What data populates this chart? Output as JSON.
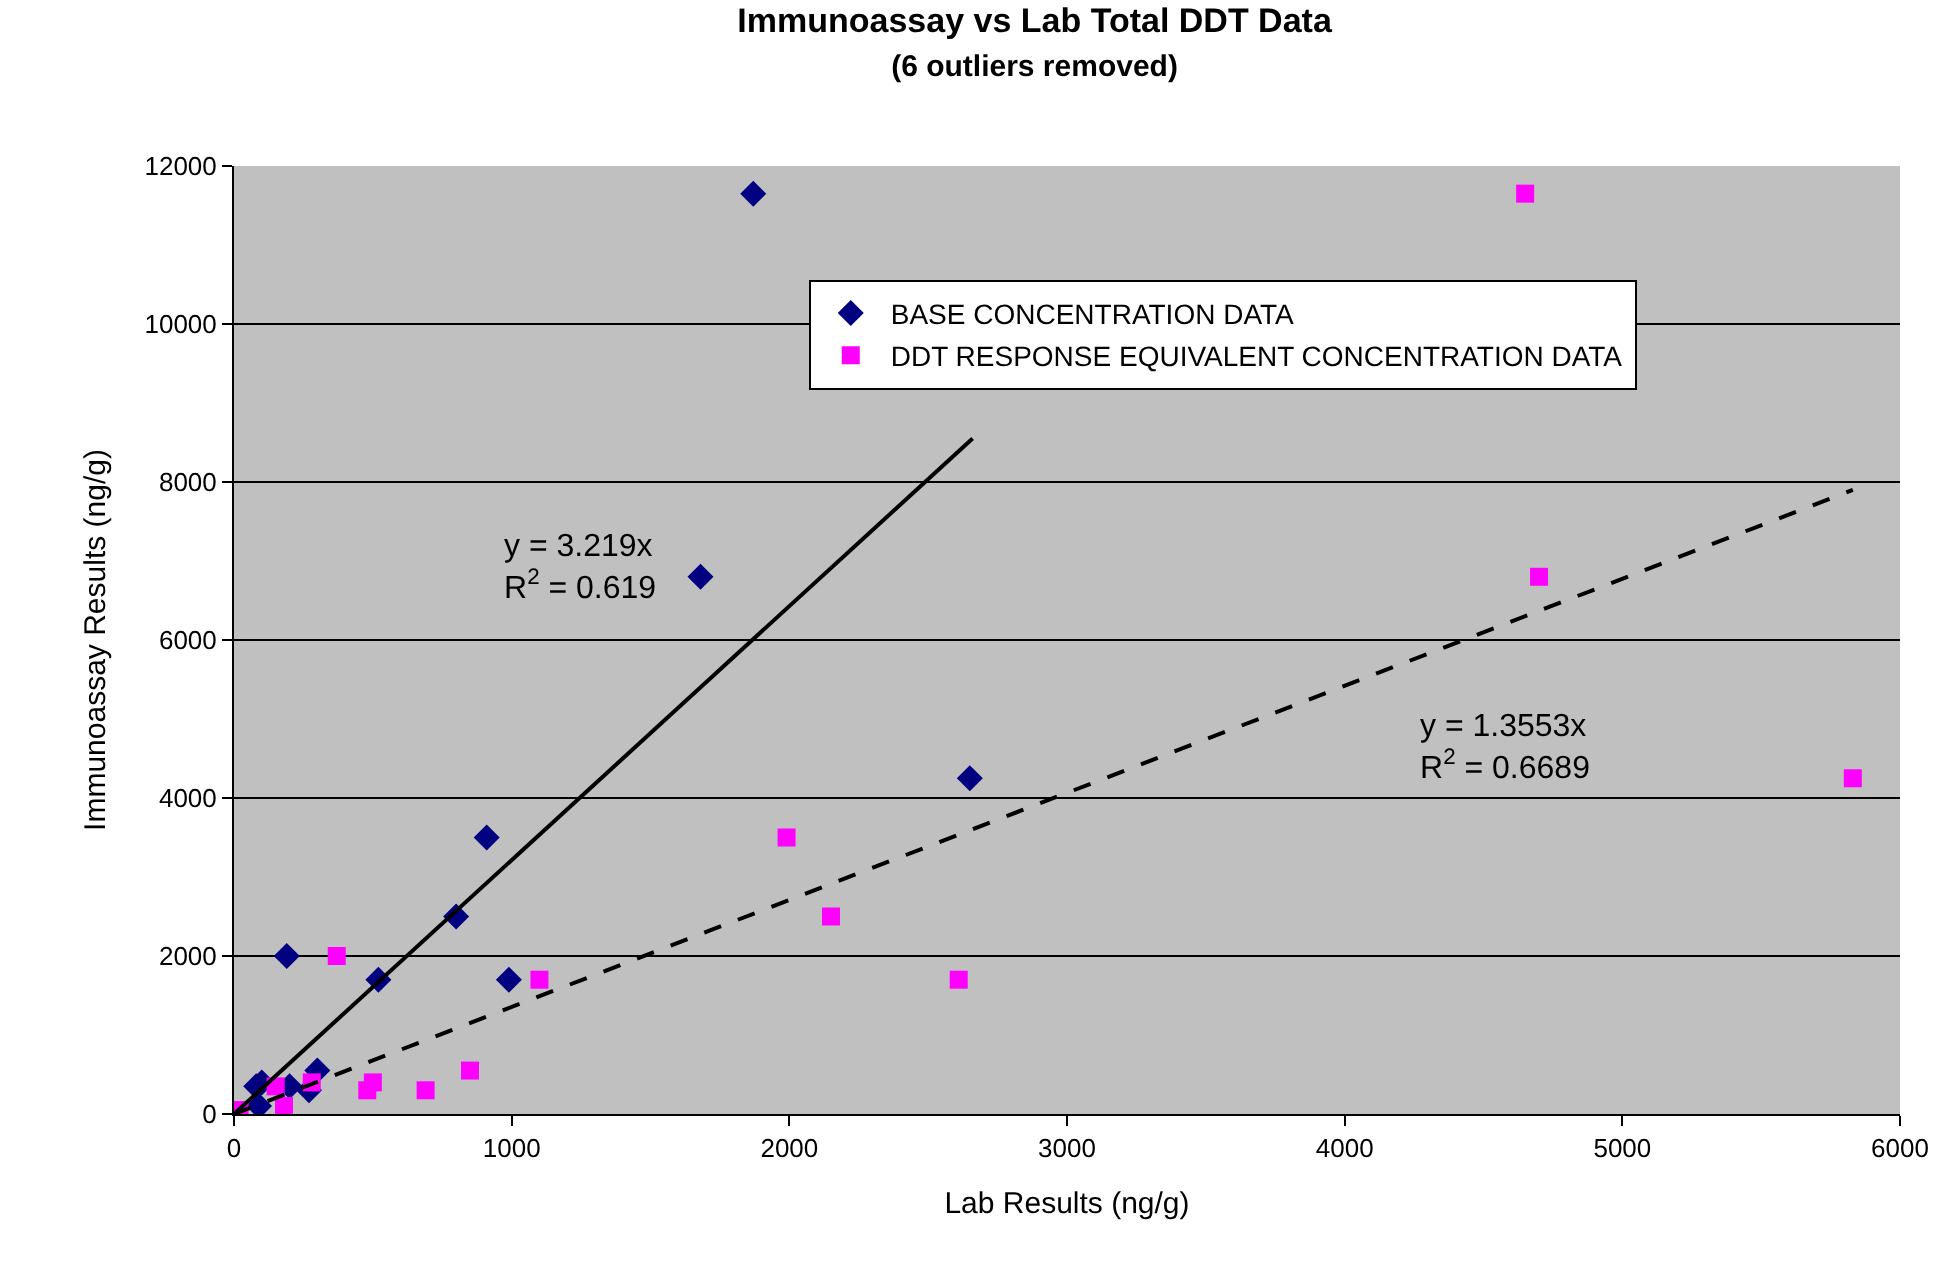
{
  "chart_data": {
    "type": "scatter",
    "title": "Immunoassay vs Lab Total DDT Data",
    "subtitle": "(6 outliers removed)",
    "xlabel": "Lab Results (ng/g)",
    "ylabel": "Immunoassay Results (ng/g)",
    "xlim": [
      0,
      6000
    ],
    "xticks": [
      0,
      1000,
      2000,
      3000,
      4000,
      5000,
      6000
    ],
    "ylim": [
      0,
      12000
    ],
    "yticks": [
      0,
      2000,
      4000,
      6000,
      8000,
      10000,
      12000
    ],
    "grid": "y",
    "legend": "top right",
    "series": [
      {
        "name": "BASE CONCENTRATION DATA",
        "color": "#000080",
        "marker": "diamond",
        "x": [
          1870,
          1680,
          2650,
          910,
          800,
          190,
          520,
          990,
          300,
          270,
          200,
          100,
          80,
          90
        ],
        "values": [
          11650,
          6800,
          4250,
          3500,
          2500,
          2000,
          1700,
          1700,
          550,
          300,
          350,
          400,
          350,
          100
        ]
      },
      {
        "name": "DDT RESPONSE EQUIVALENT CONCENTRATION DATA",
        "color": "#ff00ff",
        "marker": "square",
        "x": [
          4650,
          4700,
          5830,
          1990,
          2150,
          2610,
          1100,
          850,
          690,
          500,
          480,
          370,
          280,
          180,
          150,
          20
        ],
        "values": [
          11650,
          6800,
          4250,
          3500,
          2500,
          1700,
          1700,
          550,
          300,
          400,
          300,
          2000,
          400,
          100,
          350,
          50
        ]
      },
      {
        "type": "line",
        "color": "#000000",
        "line_style": "solid",
        "marker": "none",
        "x": [
          0,
          2660
        ],
        "values": [
          0,
          8550
        ]
      },
      {
        "type": "line",
        "color": "#000000",
        "line_style": "dashed",
        "marker": "none",
        "x": [
          0,
          5830
        ],
        "values": [
          0,
          7900
        ]
      }
    ],
    "annotations": [
      "y = 3.219x\nR$^{2}$ = 0.619",
      "y = 1.3553x\nR$^{2}$ = 0.6689"
    ]
  }
}
